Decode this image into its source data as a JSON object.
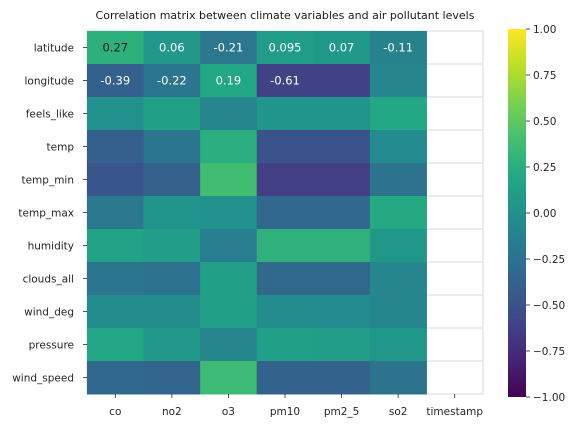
{
  "chart_data": {
    "type": "heatmap",
    "title": "Correlation matrix between climate variables and air pollutant levels",
    "xlabel": "",
    "ylabel": "",
    "columns": [
      "co",
      "no2",
      "o3",
      "pm10",
      "pm2_5",
      "so2",
      "timestamp"
    ],
    "rows": [
      "latitude",
      "longitude",
      "feels_like",
      "temp",
      "temp_min",
      "temp_max",
      "humidity",
      "clouds_all",
      "wind_deg",
      "pressure",
      "wind_speed"
    ],
    "values": [
      [
        0.27,
        0.06,
        -0.21,
        0.095,
        0.07,
        -0.11,
        null
      ],
      [
        -0.39,
        -0.22,
        0.19,
        -0.61,
        -0.61,
        -0.1,
        null
      ],
      [
        0.0,
        0.12,
        -0.1,
        0.03,
        0.03,
        0.2,
        null
      ],
      [
        -0.4,
        -0.22,
        0.25,
        -0.48,
        -0.48,
        -0.05,
        null
      ],
      [
        -0.47,
        -0.38,
        0.38,
        -0.63,
        -0.63,
        -0.23,
        null
      ],
      [
        -0.2,
        0.03,
        0.0,
        -0.33,
        -0.33,
        0.21,
        null
      ],
      [
        0.16,
        0.1,
        -0.16,
        0.28,
        0.28,
        0.05,
        null
      ],
      [
        -0.22,
        -0.25,
        0.12,
        -0.32,
        -0.32,
        -0.1,
        null
      ],
      [
        -0.04,
        -0.03,
        0.13,
        -0.03,
        -0.05,
        -0.08,
        null
      ],
      [
        0.18,
        0.06,
        -0.1,
        0.12,
        0.1,
        0.05,
        null
      ],
      [
        -0.33,
        -0.35,
        0.36,
        -0.37,
        -0.37,
        -0.23,
        null
      ]
    ],
    "annotated_cells": [
      {
        "row": 0,
        "col": 0,
        "text": "0.27"
      },
      {
        "row": 0,
        "col": 1,
        "text": "0.06"
      },
      {
        "row": 0,
        "col": 2,
        "text": "-0.21"
      },
      {
        "row": 0,
        "col": 3,
        "text": "0.095"
      },
      {
        "row": 0,
        "col": 4,
        "text": "0.07"
      },
      {
        "row": 0,
        "col": 5,
        "text": "-0.11"
      },
      {
        "row": 1,
        "col": 0,
        "text": "-0.39"
      },
      {
        "row": 1,
        "col": 1,
        "text": "-0.22"
      },
      {
        "row": 1,
        "col": 2,
        "text": "0.19"
      },
      {
        "row": 1,
        "col": 3,
        "text": "-0.61"
      }
    ],
    "vmin": -1.0,
    "vmax": 1.0,
    "colormap": "viridis",
    "colorbar_ticks": [
      "1.00",
      "0.75",
      "0.50",
      "0.25",
      "0.00",
      "−0.25",
      "−0.50",
      "−0.75",
      "−1.00"
    ],
    "colorbar_tick_values": [
      1.0,
      0.75,
      0.5,
      0.25,
      0.0,
      -0.25,
      -0.5,
      -0.75,
      -1.0
    ],
    "grid": true,
    "annotation_color_light": "#ffffff",
    "annotation_color_dark": "#1a1a1a"
  }
}
